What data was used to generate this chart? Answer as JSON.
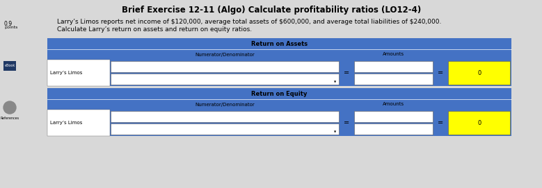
{
  "title": "Brief Exercise 12-11 (Algo) Calculate profitability ratios (LO12-4)",
  "description_line1": "Larry’s Limos reports net income of $120,000, average total assets of $600,000, and average total liabilities of $240,000.",
  "description_line2": "Calculate Larry’s return on assets and return on equity ratios.",
  "section1_header": "Return on Assets",
  "section1_subheader_col1": "Numerator/Denominator",
  "section1_subheader_col2": "Amounts",
  "section1_row_label": "Larry’s Limos",
  "section1_result": "0",
  "section2_header": "Return on Equity",
  "section2_subheader_col1": "Numerator/Denominator",
  "section2_subheader_col2": "Amounts",
  "section2_row_label": "Larry’s Limos",
  "section2_result": "0",
  "header_bg": "#4472C4",
  "header_text": "#000000",
  "subheader_text": "#000000",
  "row_bg": "#FFFFFF",
  "row_text": "#000000",
  "result_bg": "#FFFF00",
  "result_text": "#000000",
  "page_bg": "#D8D8D8",
  "title_fontsize": 8.5,
  "body_fontsize": 6.5,
  "label_fontsize": 6,
  "small_fontsize": 5
}
